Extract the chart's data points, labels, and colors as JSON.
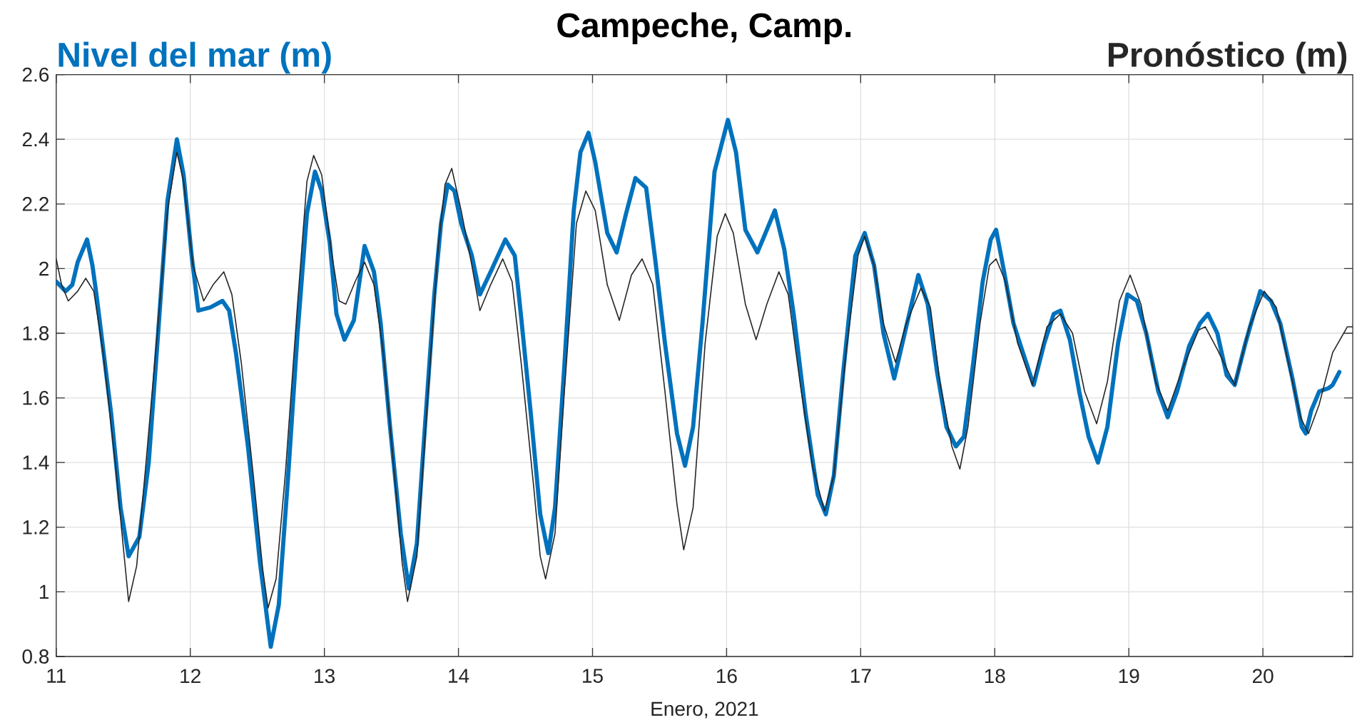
{
  "chart_data": {
    "type": "line",
    "title": "Campeche, Camp.",
    "xlabel": "Enero, 2021",
    "ylabel": "Nivel del mar (m)",
    "y2label": "Pronóstico (m)",
    "xlim": [
      11,
      20.67
    ],
    "xticks": [
      11,
      12,
      13,
      14,
      15,
      16,
      17,
      18,
      19,
      20
    ],
    "ylim": [
      0.8,
      2.6
    ],
    "yticks": [
      0.8,
      1,
      1.2,
      1.4,
      1.6,
      1.8,
      2,
      2.2,
      2.4,
      2.6
    ],
    "grid": true,
    "series": [
      {
        "color": "#0072bd",
        "x": [
          11.0,
          11.07,
          11.12,
          11.16,
          11.23,
          11.27,
          11.3,
          11.41,
          11.48,
          11.54,
          11.62,
          11.69,
          11.76,
          11.83,
          11.9,
          11.95,
          12.01,
          12.06,
          12.15,
          12.24,
          12.29,
          12.34,
          12.43,
          12.52,
          12.6,
          12.66,
          12.73,
          12.8,
          12.87,
          12.93,
          12.98,
          13.04,
          13.09,
          13.15,
          13.22,
          13.3,
          13.37,
          13.42,
          13.49,
          13.57,
          13.63,
          13.69,
          13.75,
          13.82,
          13.87,
          13.92,
          13.97,
          14.02,
          14.1,
          14.16,
          14.24,
          14.35,
          14.42,
          14.47,
          14.54,
          14.61,
          14.67,
          14.72,
          14.79,
          14.86,
          14.91,
          14.97,
          15.02,
          15.11,
          15.18,
          15.25,
          15.32,
          15.4,
          15.47,
          15.54,
          15.63,
          15.69,
          15.75,
          15.82,
          15.91,
          16.01,
          16.07,
          16.14,
          16.23,
          16.3,
          16.36,
          16.43,
          16.5,
          16.59,
          16.68,
          16.74,
          16.8,
          16.87,
          16.96,
          17.03,
          17.1,
          17.17,
          17.25,
          17.34,
          17.43,
          17.5,
          17.57,
          17.64,
          17.71,
          17.77,
          17.84,
          17.91,
          17.97,
          18.01,
          18.07,
          18.14,
          18.21,
          18.29,
          18.37,
          18.44,
          18.49,
          18.56,
          18.63,
          18.7,
          18.77,
          18.84,
          18.92,
          18.99,
          19.06,
          19.13,
          19.22,
          19.29,
          19.36,
          19.45,
          19.53,
          19.59,
          19.66,
          19.73,
          19.79,
          19.87,
          19.98,
          20.06,
          20.13,
          20.22,
          20.29,
          20.32,
          20.36,
          20.42,
          20.49,
          20.52,
          20.57
        ],
        "values": [
          1.96,
          1.93,
          1.95,
          2.02,
          2.09,
          2.01,
          1.92,
          1.55,
          1.26,
          1.11,
          1.17,
          1.4,
          1.8,
          2.21,
          2.4,
          2.29,
          2.04,
          1.87,
          1.88,
          1.9,
          1.87,
          1.74,
          1.45,
          1.09,
          0.83,
          0.96,
          1.36,
          1.8,
          2.17,
          2.3,
          2.24,
          2.08,
          1.86,
          1.78,
          1.84,
          2.07,
          1.99,
          1.83,
          1.51,
          1.18,
          1.01,
          1.15,
          1.51,
          1.92,
          2.14,
          2.26,
          2.24,
          2.14,
          2.04,
          1.92,
          1.99,
          2.09,
          2.04,
          1.84,
          1.55,
          1.24,
          1.12,
          1.26,
          1.7,
          2.18,
          2.36,
          2.42,
          2.33,
          2.11,
          2.05,
          2.17,
          2.28,
          2.25,
          2.02,
          1.77,
          1.49,
          1.39,
          1.51,
          1.83,
          2.3,
          2.46,
          2.36,
          2.12,
          2.05,
          2.12,
          2.18,
          2.06,
          1.86,
          1.55,
          1.3,
          1.24,
          1.36,
          1.68,
          2.04,
          2.11,
          2.01,
          1.8,
          1.66,
          1.82,
          1.98,
          1.89,
          1.68,
          1.51,
          1.45,
          1.48,
          1.71,
          1.96,
          2.09,
          2.12,
          1.99,
          1.83,
          1.74,
          1.64,
          1.77,
          1.86,
          1.87,
          1.78,
          1.62,
          1.48,
          1.4,
          1.51,
          1.77,
          1.92,
          1.9,
          1.8,
          1.62,
          1.54,
          1.62,
          1.76,
          1.83,
          1.86,
          1.8,
          1.67,
          1.64,
          1.77,
          1.93,
          1.9,
          1.83,
          1.66,
          1.51,
          1.49,
          1.56,
          1.62,
          1.63,
          1.64,
          1.68
        ]
      },
      {
        "color": "#262626",
        "x": [
          11.0,
          11.04,
          11.09,
          11.16,
          11.22,
          11.28,
          11.35,
          11.44,
          11.5,
          11.54,
          11.6,
          11.67,
          11.76,
          11.83,
          11.9,
          11.95,
          12.02,
          12.1,
          12.17,
          12.25,
          12.31,
          12.38,
          12.47,
          12.54,
          12.58,
          12.64,
          12.71,
          12.8,
          12.87,
          12.92,
          12.98,
          13.05,
          13.11,
          13.16,
          13.23,
          13.3,
          13.37,
          13.44,
          13.53,
          13.58,
          13.62,
          13.69,
          13.76,
          13.85,
          13.9,
          13.95,
          14.02,
          14.1,
          14.16,
          14.24,
          14.33,
          14.4,
          14.47,
          14.56,
          14.61,
          14.65,
          14.72,
          14.79,
          14.88,
          14.95,
          15.02,
          15.11,
          15.2,
          15.29,
          15.37,
          15.45,
          15.54,
          15.63,
          15.68,
          15.75,
          15.84,
          15.93,
          15.99,
          16.05,
          16.14,
          16.22,
          16.3,
          16.39,
          16.46,
          16.55,
          16.64,
          16.73,
          16.8,
          16.89,
          16.98,
          17.03,
          17.1,
          17.17,
          17.26,
          17.34,
          17.45,
          17.52,
          17.59,
          17.68,
          17.74,
          17.8,
          17.89,
          17.96,
          18.01,
          18.08,
          18.17,
          18.28,
          18.39,
          18.49,
          18.58,
          18.67,
          18.76,
          18.84,
          18.93,
          19.01,
          19.09,
          19.2,
          19.29,
          19.4,
          19.52,
          19.57,
          19.66,
          19.79,
          19.9,
          20.01,
          20.1,
          20.2,
          20.28,
          20.34,
          20.42,
          20.52,
          20.63,
          20.67
        ],
        "values": [
          2.03,
          1.95,
          1.9,
          1.93,
          1.97,
          1.93,
          1.74,
          1.4,
          1.14,
          0.97,
          1.08,
          1.4,
          1.83,
          2.18,
          2.36,
          2.27,
          2.01,
          1.9,
          1.95,
          1.99,
          1.92,
          1.71,
          1.36,
          1.07,
          0.95,
          1.04,
          1.37,
          1.89,
          2.27,
          2.35,
          2.29,
          2.06,
          1.9,
          1.89,
          1.96,
          2.02,
          1.95,
          1.74,
          1.33,
          1.09,
          0.97,
          1.11,
          1.54,
          2.07,
          2.26,
          2.31,
          2.18,
          2.01,
          1.87,
          1.95,
          2.03,
          1.96,
          1.7,
          1.33,
          1.11,
          1.04,
          1.18,
          1.62,
          2.14,
          2.24,
          2.18,
          1.95,
          1.84,
          1.98,
          2.03,
          1.95,
          1.62,
          1.27,
          1.13,
          1.26,
          1.77,
          2.1,
          2.17,
          2.11,
          1.89,
          1.78,
          1.89,
          1.99,
          1.92,
          1.64,
          1.39,
          1.25,
          1.36,
          1.74,
          2.04,
          2.1,
          2.01,
          1.83,
          1.71,
          1.83,
          1.94,
          1.88,
          1.65,
          1.45,
          1.38,
          1.51,
          1.83,
          2.01,
          2.03,
          1.96,
          1.77,
          1.64,
          1.82,
          1.86,
          1.8,
          1.62,
          1.52,
          1.65,
          1.9,
          1.98,
          1.89,
          1.65,
          1.56,
          1.69,
          1.81,
          1.82,
          1.75,
          1.64,
          1.82,
          1.93,
          1.88,
          1.69,
          1.54,
          1.49,
          1.58,
          1.74,
          1.82,
          1.82
        ]
      }
    ]
  }
}
